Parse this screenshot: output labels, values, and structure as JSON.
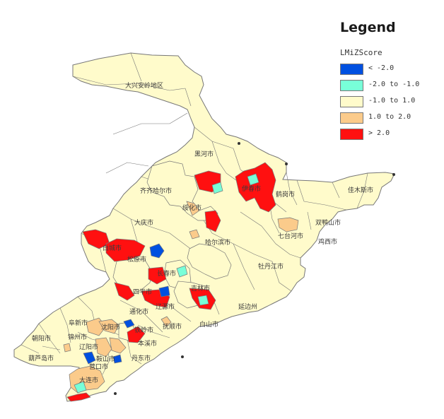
{
  "legend": {
    "title": "Legend",
    "field": "LMiZScore",
    "classes": [
      {
        "label": "< -2.0",
        "color": "#0050e0"
      },
      {
        "label": "-2.0 to -1.0",
        "color": "#78ffd8"
      },
      {
        "label": "-1.0 to 1.0",
        "color": "#fffbcb"
      },
      {
        "label": "1.0 to 2.0",
        "color": "#fbcb8b"
      },
      {
        "label": "> 2.0",
        "color": "#ff1010"
      }
    ]
  },
  "map": {
    "outline_color": "#777777",
    "labels": {
      "daxinganling": "大兴安岭地区",
      "heihe": "黑河市",
      "qiqihar": "齐齐哈尔市",
      "suihua": "绥化市",
      "yichun": "伊春市",
      "hegang": "鹤岗市",
      "jiamusi": "佳木斯市",
      "shuangyashan": "双鸭山市",
      "qitaihe": "七台河市",
      "jixi": "鸡西市",
      "daqing": "大庆市",
      "harbin": "哈尔滨市",
      "baicheng": "白城市",
      "songyuan": "松原市",
      "changchun": "长春市",
      "mudanjiang": "牡丹江市",
      "siping": "四平市",
      "jilin": "吉林市",
      "yanbian": "延边州",
      "liaoyuan": "辽源市",
      "tonghua": "通化市",
      "baishan": "白山市",
      "fuxin": "阜新市",
      "shenyang": "沈阳市",
      "tieling": "铁岭市",
      "fushun": "抚顺市",
      "chaoyang": "朝阳市",
      "jinzhou": "锦州市",
      "liaoyang": "辽阳市",
      "benxi": "本溪市",
      "huludao": "葫芦岛市",
      "anshan": "鞍山市",
      "dandong": "丹东市",
      "yingkou": "营口市",
      "dalian": "大连市"
    },
    "region_classes": [
      2,
      2,
      2,
      2,
      2,
      2,
      2,
      4,
      4,
      4,
      4,
      4,
      4,
      4,
      4,
      4,
      4,
      4,
      3,
      3,
      3,
      3,
      3,
      3,
      3,
      3,
      3,
      3,
      0,
      0,
      0,
      0,
      0,
      1,
      1,
      1,
      1,
      1
    ]
  }
}
